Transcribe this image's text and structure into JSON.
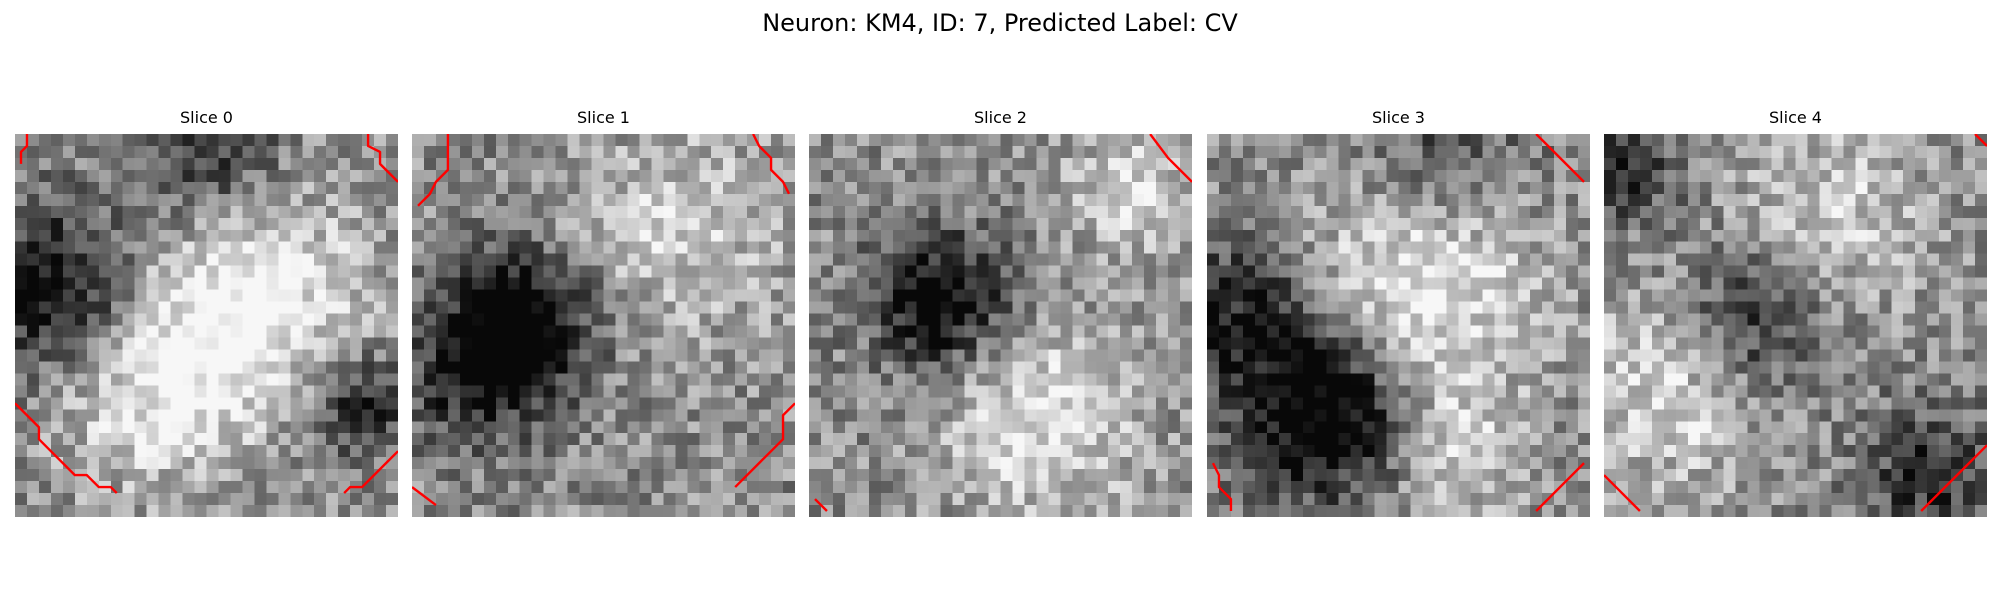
{
  "figure": {
    "title": "Neuron: KM4, ID: 7, Predicted Label: CV"
  },
  "slices": [
    {
      "label": "Slice 0",
      "dark_spots": [
        [
          0.12,
          0.42,
          0.16,
          0.55
        ],
        [
          0.9,
          0.7,
          0.1,
          0.4
        ],
        [
          0.5,
          0.05,
          0.14,
          0.4
        ]
      ],
      "bright_spots": [
        [
          0.62,
          0.42,
          0.2,
          0.45
        ],
        [
          0.35,
          0.65,
          0.18,
          0.4
        ]
      ],
      "contour_color": "#ff0000"
    },
    {
      "label": "Slice 1",
      "dark_spots": [
        [
          0.28,
          0.5,
          0.13,
          0.75
        ],
        [
          0.15,
          0.65,
          0.12,
          0.35
        ]
      ],
      "bright_spots": [
        [
          0.7,
          0.25,
          0.2,
          0.25
        ]
      ],
      "contour_color": "#ff0000"
    },
    {
      "label": "Slice 2",
      "dark_spots": [
        [
          0.34,
          0.44,
          0.12,
          0.65
        ]
      ],
      "bright_spots": [
        [
          0.6,
          0.75,
          0.18,
          0.35
        ],
        [
          0.85,
          0.15,
          0.12,
          0.3
        ]
      ],
      "contour_color": "#ff0000"
    },
    {
      "label": "Slice 3",
      "dark_spots": [
        [
          0.3,
          0.72,
          0.16,
          0.7
        ],
        [
          0.1,
          0.45,
          0.14,
          0.4
        ],
        [
          0.6,
          0.05,
          0.18,
          0.35
        ]
      ],
      "bright_spots": [
        [
          0.55,
          0.35,
          0.22,
          0.45
        ],
        [
          0.65,
          0.82,
          0.12,
          0.3
        ]
      ],
      "contour_color": "#ff0000"
    },
    {
      "label": "Slice 4",
      "dark_spots": [
        [
          0.38,
          0.5,
          0.14,
          0.45
        ],
        [
          0.85,
          0.88,
          0.12,
          0.4
        ],
        [
          0.05,
          0.1,
          0.1,
          0.35
        ]
      ],
      "bright_spots": [
        [
          0.2,
          0.65,
          0.18,
          0.35
        ],
        [
          0.6,
          0.2,
          0.18,
          0.25
        ]
      ],
      "contour_color": "#ff0000"
    }
  ]
}
